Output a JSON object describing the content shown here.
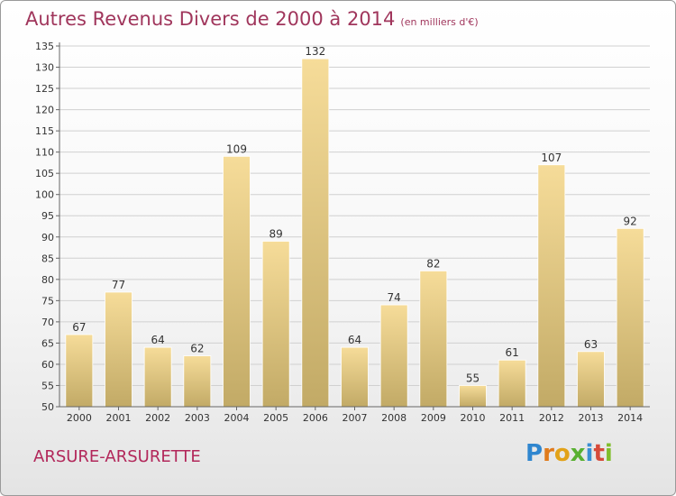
{
  "header": {
    "title": "Autres Revenus Divers de 2000 à 2014",
    "unit": "(en milliers d'€)"
  },
  "footer": {
    "place": "ARSURE-ARSURETTE",
    "logo_parts": [
      "P",
      "r",
      "o",
      "x",
      "i",
      "t",
      "i"
    ]
  },
  "colors": {
    "title": "#a0365c",
    "place": "#b2275a",
    "bar_light": "#f6dc99",
    "bar_dark": "#c2aa66",
    "grid": "#d0d0d0",
    "axis": "#666666"
  },
  "chart_data": {
    "type": "bar",
    "title": "Autres Revenus Divers de 2000 à 2014",
    "xlabel": "",
    "ylabel": "",
    "categories": [
      "2000",
      "2001",
      "2002",
      "2003",
      "2004",
      "2005",
      "2006",
      "2007",
      "2008",
      "2009",
      "2010",
      "2011",
      "2012",
      "2013",
      "2014"
    ],
    "values": [
      67,
      77,
      64,
      62,
      109,
      89,
      132,
      64,
      74,
      82,
      55,
      61,
      107,
      63,
      92
    ],
    "ylim": [
      50,
      135
    ],
    "ytick_step": 5,
    "grid": true,
    "data_labels": true
  }
}
